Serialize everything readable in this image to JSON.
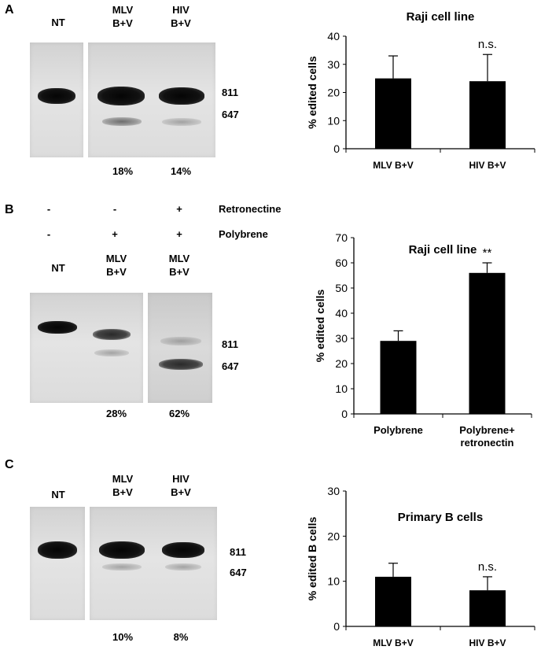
{
  "panels": [
    {
      "letter": "A",
      "gel": {
        "lane_labels": [
          "NT",
          "MLV\nB+V",
          "HIV\nB+V"
        ],
        "band_sizes": [
          "811",
          "647"
        ],
        "percentages": [
          "18%",
          "14%"
        ]
      }
    },
    {
      "letter": "B",
      "treatment_rows": [
        {
          "label": "Retronectine",
          "marks": [
            "-",
            "-",
            "+"
          ]
        },
        {
          "label": "Polybrene",
          "marks": [
            "-",
            "+",
            "+"
          ]
        }
      ],
      "gel": {
        "lane_labels": [
          "NT",
          "MLV\nB+V",
          "MLV\nB+V"
        ],
        "band_sizes": [
          "811",
          "647"
        ],
        "percentages": [
          "28%",
          "62%"
        ]
      }
    },
    {
      "letter": "C",
      "gel": {
        "lane_labels": [
          "NT",
          "MLV\nB+V",
          "HIV\nB+V"
        ],
        "band_sizes": [
          "811",
          "647"
        ],
        "percentages": [
          "10%",
          "8%"
        ]
      }
    }
  ],
  "chart_data": [
    {
      "type": "bar",
      "title": "Raji cell line",
      "ylabel": "% edited cells",
      "xlabel": "",
      "categories": [
        "MLV B+V",
        "HIV B+V"
      ],
      "values": [
        25,
        24
      ],
      "errors": [
        8,
        9.5
      ],
      "annotations": [
        "",
        "n.s."
      ],
      "ylim": [
        0,
        40
      ],
      "yticks": [
        0,
        10,
        20,
        30,
        40
      ],
      "grid": false,
      "bar_color": "#000000"
    },
    {
      "type": "bar",
      "title": "Raji cell line",
      "ylabel": "% edited cells",
      "xlabel": "",
      "categories": [
        "Polybrene",
        "Polybrene+\nretronectin"
      ],
      "values": [
        29,
        56
      ],
      "errors": [
        4,
        4
      ],
      "annotations": [
        "",
        "**"
      ],
      "ylim": [
        0,
        70
      ],
      "yticks": [
        0,
        10,
        20,
        30,
        40,
        50,
        60,
        70
      ],
      "grid": false,
      "bar_color": "#000000"
    },
    {
      "type": "bar",
      "title": "Primary B cells",
      "ylabel": "% edited B cells",
      "xlabel": "",
      "categories": [
        "MLV B+V",
        "HIV B+V"
      ],
      "values": [
        11,
        8
      ],
      "errors": [
        3,
        3
      ],
      "annotations": [
        "",
        "n.s."
      ],
      "ylim": [
        0,
        30
      ],
      "yticks": [
        0,
        10,
        20,
        30
      ],
      "grid": false,
      "bar_color": "#000000"
    }
  ]
}
